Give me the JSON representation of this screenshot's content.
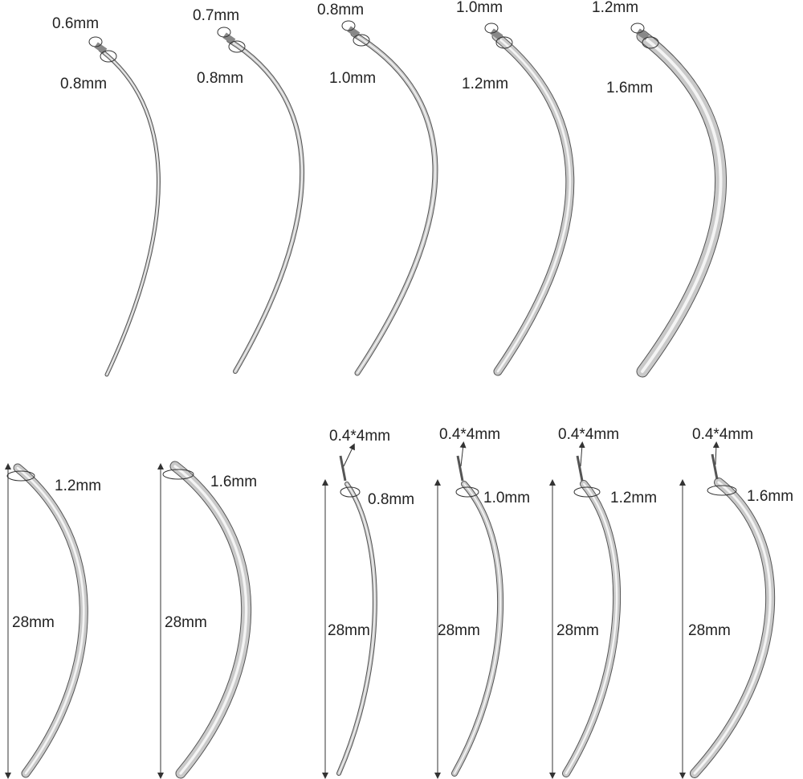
{
  "top_row": [
    {
      "tip": "0.6mm",
      "gauge": "0.8mm"
    },
    {
      "tip": "0.7mm",
      "gauge": "0.8mm"
    },
    {
      "tip": "0.8mm",
      "gauge": "1.0mm"
    },
    {
      "tip": "1.0mm",
      "gauge": "1.2mm"
    },
    {
      "tip": "1.2mm",
      "gauge": "1.6mm"
    }
  ],
  "bottom_row": [
    {
      "gauge": "1.2mm",
      "length": "28mm"
    },
    {
      "gauge": "1.6mm",
      "length": "28mm"
    },
    {
      "pin": "0.4*4mm",
      "gauge": "0.8mm",
      "length": "28mm"
    },
    {
      "pin": "0.4*4mm",
      "gauge": "1.0mm",
      "length": "28mm"
    },
    {
      "pin": "0.4*4mm",
      "gauge": "1.2mm",
      "length": "28mm"
    },
    {
      "pin": "0.4*4mm",
      "gauge": "1.6mm",
      "length": "28mm"
    }
  ]
}
